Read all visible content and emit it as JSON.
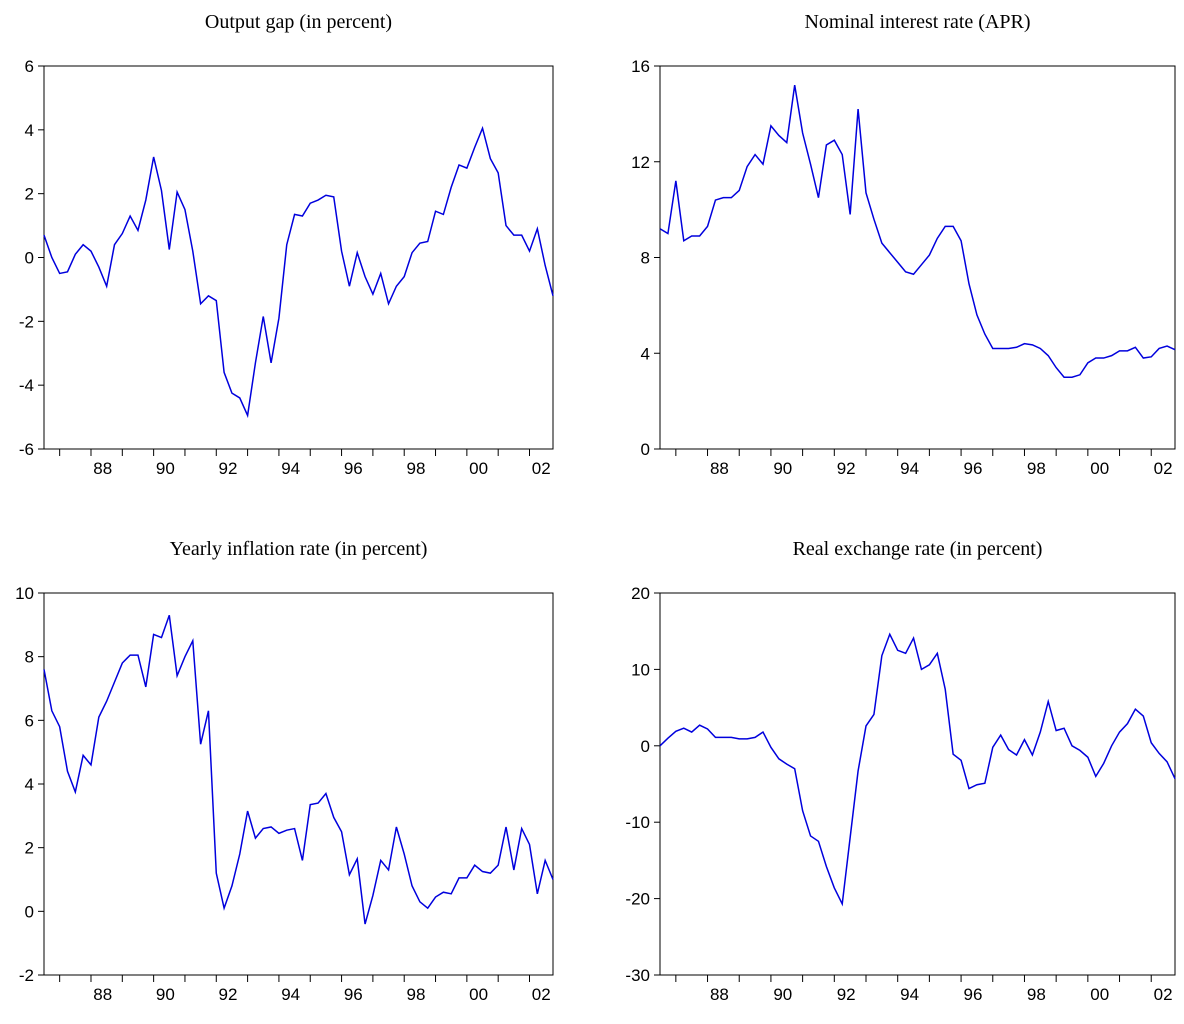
{
  "chart_data": [
    {
      "type": "line",
      "title": "Output gap (in percent)",
      "color": "#0000dd",
      "categories": [
        null,
        null,
        null,
        null,
        null,
        null,
        "88",
        null,
        null,
        null,
        null,
        null,
        null,
        null,
        "90",
        null,
        null,
        null,
        null,
        null,
        null,
        null,
        "92",
        null,
        null,
        null,
        null,
        null,
        null,
        null,
        "94",
        null,
        null,
        null,
        null,
        null,
        null,
        null,
        "96",
        null,
        null,
        null,
        null,
        null,
        null,
        null,
        "98",
        null,
        null,
        null,
        null,
        null,
        null,
        null,
        "00",
        null,
        null,
        null,
        null,
        null,
        null,
        null,
        "02",
        null,
        null,
        null
      ],
      "values": [
        0.7,
        0.0,
        -0.5,
        -0.45,
        0.1,
        0.4,
        0.2,
        -0.3,
        -0.9,
        0.4,
        0.75,
        1.3,
        0.85,
        1.8,
        3.15,
        2.1,
        0.25,
        2.05,
        1.5,
        0.2,
        -1.45,
        -1.2,
        -1.35,
        -3.6,
        -4.25,
        -4.4,
        -4.95,
        -3.3,
        -1.85,
        -3.3,
        -1.9,
        0.4,
        1.35,
        1.3,
        1.7,
        1.8,
        1.95,
        1.9,
        0.2,
        -0.9,
        0.15,
        -0.6,
        -1.15,
        -0.5,
        -1.45,
        -0.9,
        -0.6,
        0.15,
        0.45,
        0.5,
        1.45,
        1.35,
        2.2,
        2.9,
        2.8,
        3.45,
        4.05,
        3.1,
        2.65,
        1.0,
        0.7,
        0.7,
        0.2,
        0.9,
        -0.25,
        -1.2
      ],
      "ylim": [
        -6,
        6
      ],
      "yticks": [
        -6,
        -4,
        -2,
        0,
        2,
        4,
        6
      ]
    },
    {
      "type": "line",
      "title": "Nominal interest rate (APR)",
      "color": "#0000dd",
      "categories": [
        null,
        null,
        null,
        null,
        null,
        null,
        "88",
        null,
        null,
        null,
        null,
        null,
        null,
        null,
        "90",
        null,
        null,
        null,
        null,
        null,
        null,
        null,
        "92",
        null,
        null,
        null,
        null,
        null,
        null,
        null,
        "94",
        null,
        null,
        null,
        null,
        null,
        null,
        null,
        "96",
        null,
        null,
        null,
        null,
        null,
        null,
        null,
        "98",
        null,
        null,
        null,
        null,
        null,
        null,
        null,
        "00",
        null,
        null,
        null,
        null,
        null,
        null,
        null,
        "02",
        null,
        null,
        null
      ],
      "values": [
        9.2,
        9.0,
        11.2,
        8.7,
        8.9,
        8.9,
        9.3,
        10.4,
        10.5,
        10.5,
        10.8,
        11.8,
        12.3,
        11.9,
        13.5,
        13.1,
        12.8,
        15.2,
        13.2,
        11.9,
        10.5,
        12.7,
        12.9,
        12.3,
        9.8,
        14.2,
        10.7,
        9.6,
        8.6,
        8.2,
        7.8,
        7.4,
        7.3,
        7.7,
        8.1,
        8.8,
        9.3,
        9.3,
        8.7,
        6.9,
        5.6,
        4.8,
        4.2,
        4.2,
        4.2,
        4.25,
        4.4,
        4.35,
        4.2,
        3.9,
        3.4,
        3.0,
        3.0,
        3.1,
        3.6,
        3.8,
        3.8,
        3.9,
        4.1,
        4.1,
        4.25,
        3.8,
        3.85,
        4.2,
        4.3,
        4.15
      ],
      "ylim": [
        0,
        16
      ],
      "yticks": [
        0,
        4,
        8,
        12,
        16
      ]
    },
    {
      "type": "line",
      "title": "Yearly inflation rate (in percent)",
      "color": "#0000dd",
      "categories": [
        null,
        null,
        null,
        null,
        null,
        null,
        "88",
        null,
        null,
        null,
        null,
        null,
        null,
        null,
        "90",
        null,
        null,
        null,
        null,
        null,
        null,
        null,
        "92",
        null,
        null,
        null,
        null,
        null,
        null,
        null,
        "94",
        null,
        null,
        null,
        null,
        null,
        null,
        null,
        "96",
        null,
        null,
        null,
        null,
        null,
        null,
        null,
        "98",
        null,
        null,
        null,
        null,
        null,
        null,
        null,
        "00",
        null,
        null,
        null,
        null,
        null,
        null,
        null,
        "02",
        null,
        null,
        null
      ],
      "values": [
        7.6,
        6.3,
        5.8,
        4.4,
        3.75,
        4.9,
        4.6,
        6.1,
        6.6,
        7.2,
        7.8,
        8.05,
        8.05,
        7.05,
        8.7,
        8.6,
        9.3,
        7.4,
        8.0,
        8.5,
        5.25,
        6.3,
        1.2,
        0.1,
        0.8,
        1.8,
        3.15,
        2.3,
        2.6,
        2.65,
        2.45,
        2.55,
        2.6,
        1.6,
        3.35,
        3.4,
        3.7,
        2.95,
        2.5,
        1.15,
        1.65,
        -0.4,
        0.5,
        1.6,
        1.3,
        2.65,
        1.8,
        0.8,
        0.3,
        0.1,
        0.45,
        0.6,
        0.55,
        1.05,
        1.05,
        1.45,
        1.25,
        1.2,
        1.45,
        2.65,
        1.3,
        2.6,
        2.1,
        0.55,
        1.6,
        1.0
      ],
      "ylim": [
        -2,
        10
      ],
      "yticks": [
        -2,
        0,
        2,
        4,
        6,
        8,
        10
      ]
    },
    {
      "type": "line",
      "title": "Real exchange rate (in percent)",
      "color": "#0000dd",
      "categories": [
        null,
        null,
        null,
        null,
        null,
        null,
        "88",
        null,
        null,
        null,
        null,
        null,
        null,
        null,
        "90",
        null,
        null,
        null,
        null,
        null,
        null,
        null,
        "92",
        null,
        null,
        null,
        null,
        null,
        null,
        null,
        "94",
        null,
        null,
        null,
        null,
        null,
        null,
        null,
        "96",
        null,
        null,
        null,
        null,
        null,
        null,
        null,
        "98",
        null,
        null,
        null,
        null,
        null,
        null,
        null,
        "00",
        null,
        null,
        null,
        null,
        null,
        null,
        null,
        "02",
        null,
        null,
        null
      ],
      "values": [
        0,
        1,
        1.9,
        2.3,
        1.8,
        2.7,
        2.2,
        1.1,
        1.1,
        1.1,
        0.9,
        0.9,
        1.1,
        1.8,
        -0.2,
        -1.7,
        -2.4,
        -3.0,
        -8.5,
        -11.8,
        -12.5,
        -15.8,
        -18.6,
        -20.7,
        -12,
        -3.3,
        2.6,
        4.1,
        11.8,
        14.6,
        12.5,
        12.1,
        14.1,
        10,
        10.6,
        12.1,
        7.4,
        -1.1,
        -1.9,
        -5.6,
        -5.1,
        -4.9,
        -0.2,
        1.4,
        -0.5,
        -1.2,
        0.8,
        -1.2,
        1.8,
        5.8,
        2,
        2.3,
        0,
        -0.6,
        -1.5,
        -4,
        -2.3,
        0,
        1.8,
        2.9,
        4.8,
        3.9,
        0.4,
        -1.0,
        -2.1,
        -4.3
      ],
      "ylim": [
        -30,
        20
      ],
      "yticks": [
        -30,
        -20,
        -10,
        0,
        10,
        20
      ]
    }
  ]
}
